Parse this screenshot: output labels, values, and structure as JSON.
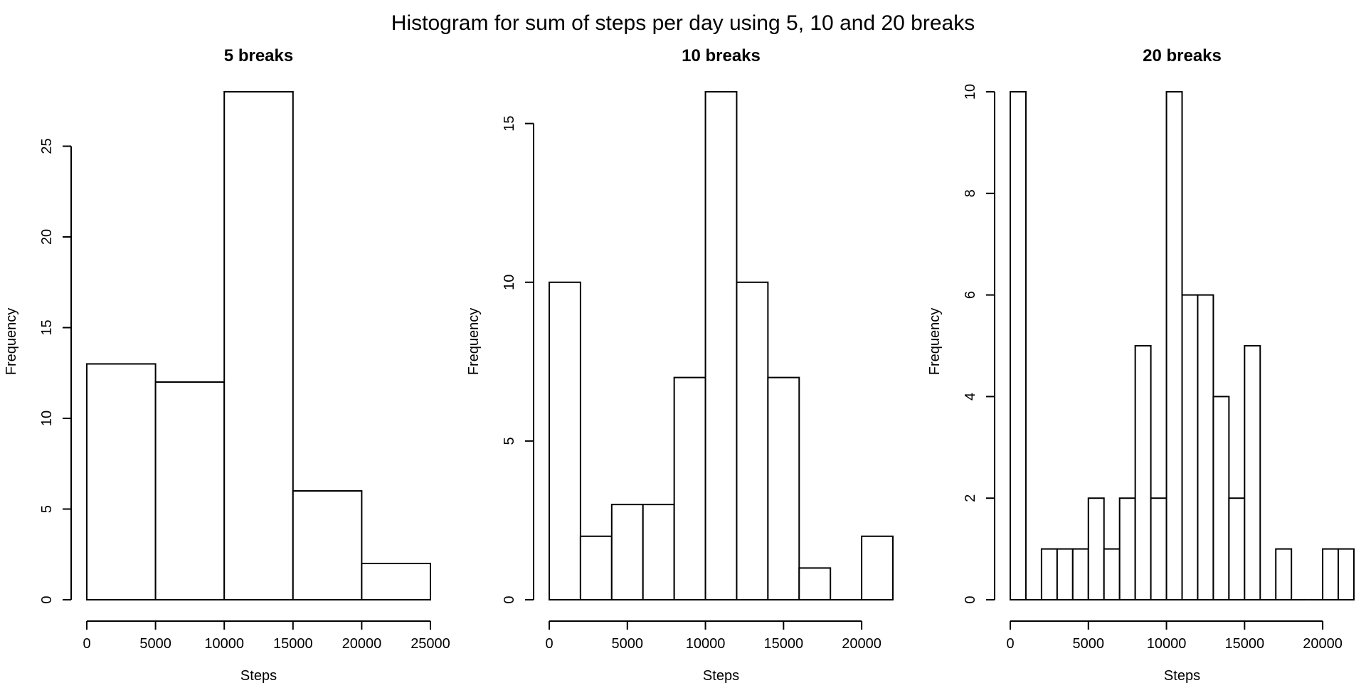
{
  "figure": {
    "title": "Histogram for sum of steps per day using 5, 10 and 20 breaks"
  },
  "chart_data": [
    {
      "type": "bar",
      "title": "5 breaks",
      "xlabel": "Steps",
      "ylabel": "Frequency",
      "breaks": [
        0,
        5000,
        10000,
        15000,
        20000,
        25000
      ],
      "values": [
        13,
        12,
        28,
        6,
        2
      ],
      "xlim": [
        0,
        25000
      ],
      "ylim": [
        0,
        28
      ],
      "x_ticks": [
        0,
        5000,
        10000,
        15000,
        20000,
        25000
      ],
      "x_tick_labels": [
        "0",
        "5000",
        "10000",
        "15000",
        "20000",
        "25000"
      ],
      "y_ticks": [
        0,
        5,
        10,
        15,
        20,
        25
      ],
      "y_tick_labels": [
        "0",
        "5",
        "10",
        "15",
        "20",
        "25"
      ],
      "grid": false,
      "bar_fill": "#ffffff",
      "bar_stroke": "#000000"
    },
    {
      "type": "bar",
      "title": "10 breaks",
      "xlabel": "Steps",
      "ylabel": "Frequency",
      "breaks": [
        0,
        2000,
        4000,
        6000,
        8000,
        10000,
        12000,
        14000,
        16000,
        18000,
        20000,
        22000
      ],
      "values": [
        10,
        2,
        3,
        3,
        7,
        16,
        10,
        7,
        1,
        0,
        2
      ],
      "xlim": [
        0,
        22000
      ],
      "ylim": [
        0,
        16
      ],
      "x_ticks": [
        0,
        5000,
        10000,
        15000,
        20000
      ],
      "x_tick_labels": [
        "0",
        "5000",
        "10000",
        "15000",
        "20000"
      ],
      "y_ticks": [
        0,
        5,
        10,
        15
      ],
      "y_tick_labels": [
        "0",
        "5",
        "10",
        "15"
      ],
      "grid": false,
      "bar_fill": "#ffffff",
      "bar_stroke": "#000000"
    },
    {
      "type": "bar",
      "title": "20 breaks",
      "xlabel": "Steps",
      "ylabel": "Frequency",
      "breaks": [
        0,
        1000,
        2000,
        3000,
        4000,
        5000,
        6000,
        7000,
        8000,
        9000,
        10000,
        11000,
        12000,
        13000,
        14000,
        15000,
        16000,
        17000,
        18000,
        19000,
        20000,
        21000,
        22000
      ],
      "values": [
        10,
        0,
        1,
        1,
        1,
        2,
        1,
        2,
        5,
        2,
        10,
        6,
        6,
        4,
        2,
        5,
        0,
        1,
        0,
        0,
        1,
        1
      ],
      "xlim": [
        0,
        22000
      ],
      "ylim": [
        0,
        10
      ],
      "x_ticks": [
        0,
        5000,
        10000,
        15000,
        20000
      ],
      "x_tick_labels": [
        "0",
        "5000",
        "10000",
        "15000",
        "20000"
      ],
      "y_ticks": [
        0,
        2,
        4,
        6,
        8,
        10
      ],
      "y_tick_labels": [
        "0",
        "2",
        "4",
        "6",
        "8",
        "10"
      ],
      "grid": false,
      "bar_fill": "#ffffff",
      "bar_stroke": "#000000"
    }
  ]
}
